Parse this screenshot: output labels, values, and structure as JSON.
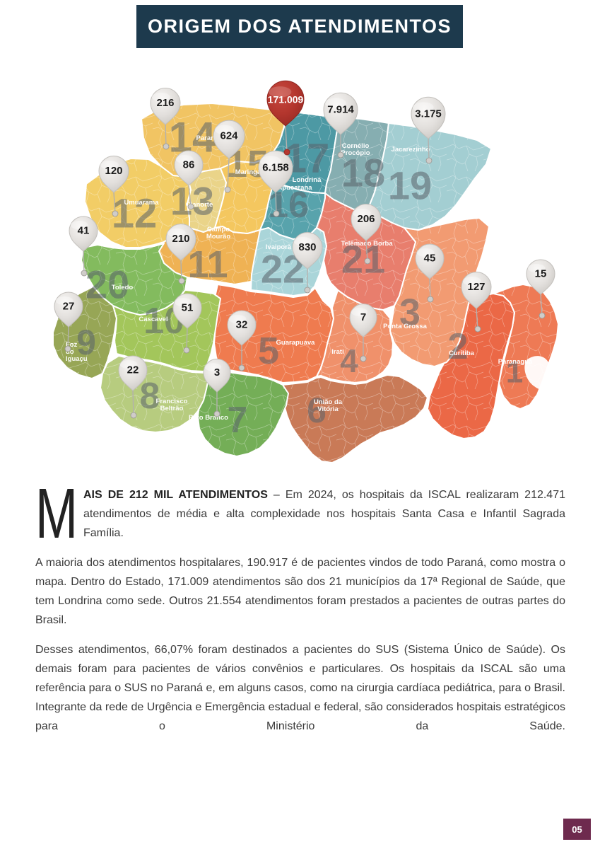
{
  "page": {
    "title": "ORIGEM DOS ATENDIMENTOS",
    "page_number": "05",
    "title_bg": "#1D3A4D",
    "badge_bg": "#6E2A4E"
  },
  "article": {
    "dropcap": "M",
    "p1_bold": "AIS DE 212 MIL ATENDIMENTOS",
    "p1_rest": " – Em 2024, os hospitais da ISCAL realizaram 212.471 atendimentos de média e alta complexidade nos hospitais Santa Casa e Infantil Sagrada Família.",
    "p2": "A maioria dos atendimentos hospitalares, 190.917 é de pacientes vindos de todo Paraná, como mostra o mapa. Dentro do Estado, 171.009 atendimentos são dos 21 municípios da 17ª Regional de Saúde, que tem Londrina como sede. Outros 21.554 atendimentos foram prestados a pacientes de outras partes do Brasil.",
    "p3": "Desses atendimentos, 66,07% foram destinados a pacientes do SUS (Sistema Único de Saúde). Os demais foram para pacientes de vários convênios e particulares. Os hospitais da ISCAL são uma referência para o SUS no Paraná e, em alguns casos, como na cirurgia cardíaca pediátrica, para o Brasil. Integrante da rede de Urgência e Emergência estadual e federal, são considerados hospitais estratégicos para o Ministério da Saúde."
  },
  "map": {
    "pin_default_color": "#DEDBD8",
    "highlight_pin_color": "#B5372F",
    "regions": [
      {
        "id": 1,
        "number": "1",
        "city": "Paranaguá",
        "pin": "15",
        "color": "#EE7A55"
      },
      {
        "id": 2,
        "number": "2",
        "city": "Curitiba",
        "pin": "127",
        "color": "#EB6846"
      },
      {
        "id": 3,
        "number": "3",
        "city": "Ponta Grossa",
        "pin": "45",
        "color": "#F29B72"
      },
      {
        "id": 4,
        "number": "4",
        "city": "Irati",
        "pin": "7",
        "color": "#F0916B"
      },
      {
        "id": 5,
        "number": "5",
        "city": "Guarapuava",
        "pin": "32",
        "color": "#EF7B4F"
      },
      {
        "id": 6,
        "number": "6",
        "city": "União da Vitória",
        "pin": null,
        "color": "#C97A57"
      },
      {
        "id": 7,
        "number": "7",
        "city": "Pato Branco",
        "pin": "3",
        "color": "#74AE57"
      },
      {
        "id": 8,
        "number": "8",
        "city": "Francisco Beltrão",
        "pin": "22",
        "color": "#B7CC7F"
      },
      {
        "id": 9,
        "number": "9",
        "city": "Foz do Iguaçu",
        "pin": "27",
        "color": "#97A656"
      },
      {
        "id": 10,
        "number": "10",
        "city": "Cascavel",
        "pin": "51",
        "color": "#A3C65B"
      },
      {
        "id": 11,
        "number": "11",
        "city": "Campo Mourão",
        "pin": "210",
        "color": "#EFB254"
      },
      {
        "id": 12,
        "number": "12",
        "city": "Umuarama",
        "pin": "120",
        "color": "#F2CD66"
      },
      {
        "id": 13,
        "number": "13",
        "city": "Cianorte",
        "pin": "86",
        "color": "#EAD489"
      },
      {
        "id": 14,
        "number": "14",
        "city": "Paranavaí",
        "pin": "216",
        "color": "#F1C463"
      },
      {
        "id": 15,
        "number": "15",
        "city": "Maringá",
        "pin": "624",
        "color": "#F4C75F"
      },
      {
        "id": 16,
        "number": "16",
        "city": "Apucarana",
        "pin": "6.158",
        "color": "#58A3AC"
      },
      {
        "id": 17,
        "number": "17",
        "city": "Londrina",
        "pin": "171.009",
        "color": "#4D99A4",
        "highlight": true
      },
      {
        "id": 18,
        "number": "18",
        "city": "Cornélio Procópio",
        "pin": "7.914",
        "color": "#86AEB1"
      },
      {
        "id": 19,
        "number": "19",
        "city": "Jacarezinho",
        "pin": "3.175",
        "color": "#A3CED2"
      },
      {
        "id": 20,
        "number": "20",
        "city": "Toledo",
        "pin": "41",
        "color": "#83BB5E"
      },
      {
        "id": 21,
        "number": "21",
        "city": "Telêmaco Borba",
        "pin": "206",
        "color": "#E87E6D"
      },
      {
        "id": 22,
        "number": "22",
        "city": "Ivaiporã",
        "pin": "830",
        "color": "#AAD5D9"
      }
    ]
  }
}
